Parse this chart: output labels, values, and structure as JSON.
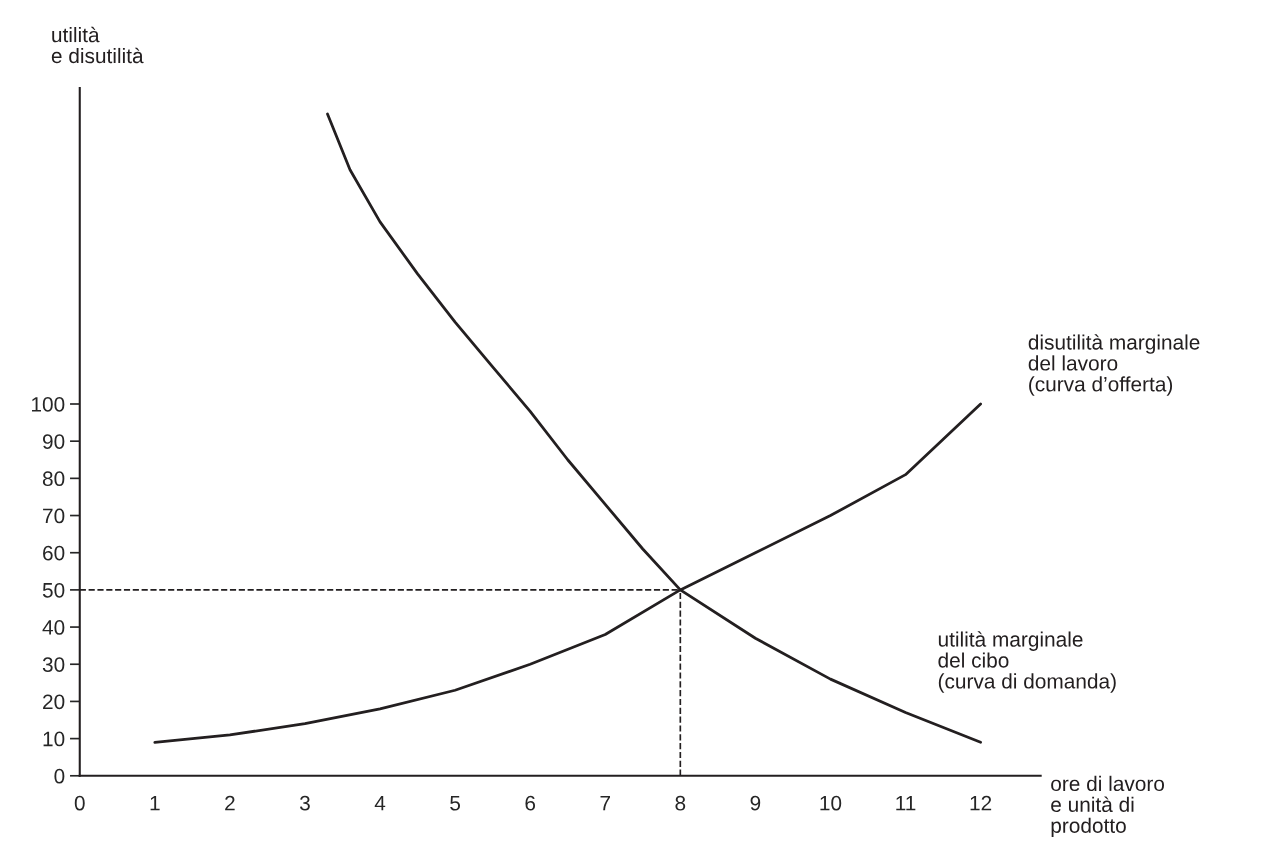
{
  "chart_data": {
    "type": "line",
    "xlabel": "ore di lavoro\ne unità di\nprodotto",
    "ylabel": "utilità\ne disutilità",
    "series": [
      {
        "name": "disutilità marginale\ndel lavoro\n(curva d’offerta)",
        "color": "#231f20",
        "x": [
          1,
          2,
          3,
          4,
          5,
          6,
          7,
          8,
          9,
          10,
          11,
          12
        ],
        "values": [
          9,
          11,
          14,
          18,
          23,
          30,
          38,
          50,
          60,
          70,
          81,
          100
        ]
      },
      {
        "name": "utilità marginale\ndel cibo\n(curva di domanda)",
        "color": "#231f20",
        "x": [
          3.3,
          3.6,
          4,
          4.5,
          5,
          5.5,
          6,
          6.5,
          7,
          7.5,
          8,
          9,
          10,
          11,
          12
        ],
        "values": [
          178,
          163,
          149,
          135,
          122,
          110,
          98,
          85,
          73,
          61,
          50,
          37,
          26,
          17,
          9
        ]
      }
    ],
    "xlim": [
      0,
      12.8
    ],
    "ylim": [
      0,
      185
    ],
    "xticks": [
      0,
      1,
      2,
      3,
      4,
      5,
      6,
      7,
      8,
      9,
      10,
      11,
      12
    ],
    "yticks": [
      0,
      10,
      20,
      30,
      40,
      50,
      60,
      70,
      80,
      90,
      100
    ],
    "ref_lines": [
      {
        "axis": "y",
        "value": 50,
        "line_style": "dashed"
      },
      {
        "axis": "x",
        "value": 8,
        "line_style": "dashed"
      }
    ],
    "grid": false,
    "legend": false,
    "line_style": "solid",
    "marker": "none"
  }
}
